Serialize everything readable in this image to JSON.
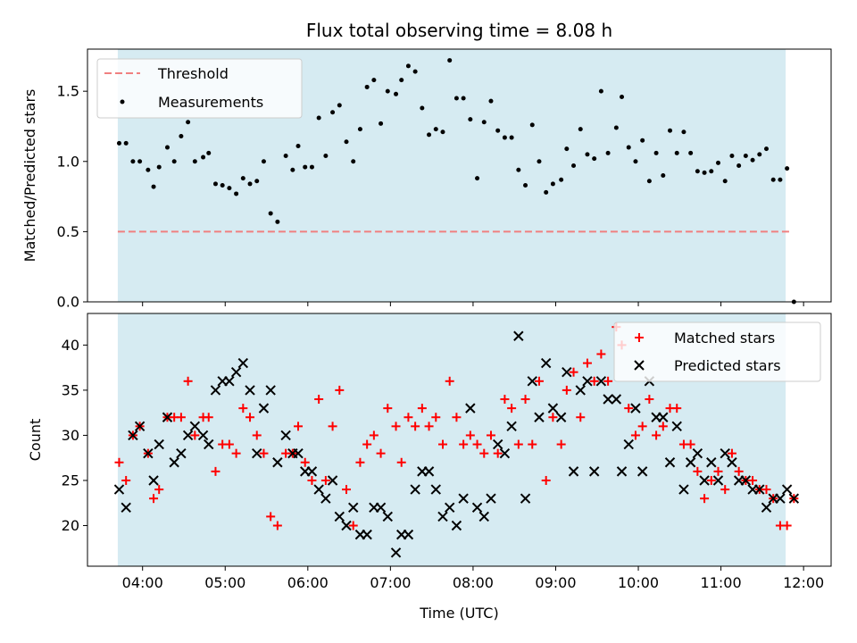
{
  "chart_data": [
    {
      "type": "scatter",
      "title": "Flux total observing time = 8.08 h",
      "xlabel": "",
      "ylabel": "Matched/Predicted stars",
      "xlim": [
        "03:20",
        "12:20"
      ],
      "ylim": [
        0,
        1.8
      ],
      "yticks": [
        "0.0",
        "0.5",
        "1.0",
        "1.5"
      ],
      "shaded_span": [
        "03:42",
        "11:47"
      ],
      "threshold": {
        "name": "Threshold",
        "value": 0.5,
        "x_range": [
          "03:42",
          "11:52"
        ],
        "style": "dashed",
        "color": "#f08080"
      },
      "legend": {
        "placement": "upper-left",
        "entries": [
          "Threshold",
          "Measurements"
        ]
      },
      "series": [
        {
          "name": "Measurements",
          "marker": "dot",
          "color": "#000000",
          "x": [
            "03:43",
            "03:48",
            "03:53",
            "03:58",
            "04:04",
            "04:08",
            "04:12",
            "04:18",
            "04:23",
            "04:28",
            "04:33",
            "04:38",
            "04:44",
            "04:48",
            "04:53",
            "04:58",
            "05:03",
            "05:08",
            "05:13",
            "05:18",
            "05:23",
            "05:28",
            "05:33",
            "05:38",
            "05:44",
            "05:49",
            "05:53",
            "05:58",
            "06:03",
            "06:08",
            "06:13",
            "06:18",
            "06:23",
            "06:28",
            "06:33",
            "06:38",
            "06:43",
            "06:48",
            "06:53",
            "06:58",
            "07:04",
            "07:08",
            "07:13",
            "07:18",
            "07:23",
            "07:28",
            "07:33",
            "07:38",
            "07:43",
            "07:48",
            "07:53",
            "07:58",
            "08:03",
            "08:08",
            "08:13",
            "08:18",
            "08:23",
            "08:28",
            "08:33",
            "08:38",
            "08:43",
            "08:48",
            "08:53",
            "08:58",
            "09:04",
            "09:08",
            "09:13",
            "09:18",
            "09:23",
            "09:28",
            "09:33",
            "09:38",
            "09:44",
            "09:48",
            "09:53",
            "09:58",
            "10:03",
            "10:08",
            "10:13",
            "10:18",
            "10:23",
            "10:28",
            "10:33",
            "10:38",
            "10:43",
            "10:48",
            "10:53",
            "10:58",
            "11:03",
            "11:08",
            "11:13",
            "11:18",
            "11:23",
            "11:28",
            "11:33",
            "11:38",
            "11:43",
            "11:48",
            "11:53"
          ],
          "values": [
            1.13,
            1.13,
            1.0,
            1.0,
            0.94,
            0.82,
            0.96,
            1.1,
            1.0,
            1.18,
            1.28,
            1.0,
            1.03,
            1.06,
            0.84,
            0.83,
            0.81,
            0.77,
            0.88,
            0.84,
            0.86,
            1.0,
            0.63,
            0.57,
            1.04,
            0.94,
            1.11,
            0.96,
            0.96,
            1.31,
            1.04,
            1.35,
            1.4,
            1.14,
            1.0,
            1.23,
            1.53,
            1.58,
            1.27,
            1.5,
            1.48,
            1.58,
            1.68,
            1.64,
            1.38,
            1.19,
            1.23,
            1.21,
            1.72,
            1.45,
            1.45,
            1.3,
            0.88,
            1.28,
            1.43,
            1.22,
            1.17,
            1.17,
            0.94,
            0.83,
            1.26,
            1.0,
            0.78,
            0.84,
            0.87,
            1.09,
            0.97,
            1.23,
            1.05,
            1.02,
            1.5,
            1.06,
            1.24,
            1.46,
            1.1,
            1.0,
            1.15,
            0.86,
            1.06,
            0.9,
            1.22,
            1.06,
            1.21,
            1.06,
            0.93,
            0.92,
            0.93,
            0.99,
            0.86,
            1.04,
            0.97,
            1.04,
            1.01,
            1.05,
            1.09,
            0.87,
            0.87,
            0.95,
            0.0
          ]
        }
      ]
    },
    {
      "type": "scatter",
      "title": "",
      "xlabel": "Time (UTC)",
      "ylabel": "Count",
      "xlim": [
        "03:20",
        "12:20"
      ],
      "ylim": [
        15.5,
        43.5
      ],
      "yticks": [
        "20",
        "25",
        "30",
        "35",
        "40"
      ],
      "xticks": [
        "04:00",
        "05:00",
        "06:00",
        "07:00",
        "08:00",
        "09:00",
        "10:00",
        "11:00",
        "12:00"
      ],
      "shaded_span": [
        "03:42",
        "11:47"
      ],
      "legend": {
        "placement": "upper-right",
        "entries": [
          "Matched stars",
          "Predicted stars"
        ]
      },
      "series": [
        {
          "name": "Matched stars",
          "marker": "plus",
          "color": "#ff0000",
          "x": [
            "03:43",
            "03:48",
            "03:53",
            "03:58",
            "04:04",
            "04:08",
            "04:12",
            "04:18",
            "04:23",
            "04:28",
            "04:33",
            "04:38",
            "04:44",
            "04:48",
            "04:53",
            "04:58",
            "05:03",
            "05:08",
            "05:13",
            "05:18",
            "05:23",
            "05:28",
            "05:33",
            "05:38",
            "05:44",
            "05:49",
            "05:53",
            "05:58",
            "06:03",
            "06:08",
            "06:13",
            "06:18",
            "06:23",
            "06:28",
            "06:33",
            "06:38",
            "06:43",
            "06:48",
            "06:53",
            "06:58",
            "07:04",
            "07:08",
            "07:13",
            "07:18",
            "07:23",
            "07:28",
            "07:33",
            "07:38",
            "07:43",
            "07:48",
            "07:53",
            "07:58",
            "08:03",
            "08:08",
            "08:13",
            "08:18",
            "08:23",
            "08:28",
            "08:33",
            "08:38",
            "08:43",
            "08:48",
            "08:53",
            "08:58",
            "09:04",
            "09:08",
            "09:13",
            "09:18",
            "09:23",
            "09:28",
            "09:33",
            "09:38",
            "09:44",
            "09:48",
            "09:53",
            "09:58",
            "10:03",
            "10:08",
            "10:13",
            "10:18",
            "10:23",
            "10:28",
            "10:33",
            "10:38",
            "10:43",
            "10:48",
            "10:53",
            "10:58",
            "11:03",
            "11:08",
            "11:13",
            "11:18",
            "11:23",
            "11:28",
            "11:33",
            "11:38",
            "11:43",
            "11:48",
            "11:53"
          ],
          "values": [
            27,
            25,
            30,
            31,
            28,
            23,
            24,
            32,
            32,
            32,
            36,
            30,
            32,
            32,
            26,
            29,
            29,
            28,
            33,
            32,
            30,
            28,
            21,
            20,
            28,
            28,
            31,
            27,
            25,
            34,
            25,
            31,
            35,
            24,
            20,
            27,
            29,
            30,
            28,
            33,
            31,
            27,
            32,
            31,
            33,
            31,
            32,
            29,
            36,
            32,
            29,
            30,
            29,
            28,
            30,
            28,
            34,
            33,
            29,
            34,
            29,
            36,
            25,
            32,
            29,
            35,
            37,
            32,
            38,
            36,
            39,
            36,
            42,
            40,
            33,
            30,
            31,
            34,
            30,
            31,
            33,
            33,
            29,
            29,
            26,
            23,
            25,
            26,
            24,
            28,
            26,
            25,
            25,
            24,
            24,
            23,
            20,
            20,
            23
          ]
        },
        {
          "name": "Predicted stars",
          "marker": "x",
          "color": "#000000",
          "x": [
            "03:43",
            "03:48",
            "03:53",
            "03:58",
            "04:04",
            "04:08",
            "04:12",
            "04:18",
            "04:23",
            "04:28",
            "04:33",
            "04:38",
            "04:44",
            "04:48",
            "04:53",
            "04:58",
            "05:03",
            "05:08",
            "05:13",
            "05:18",
            "05:23",
            "05:28",
            "05:33",
            "05:38",
            "05:44",
            "05:49",
            "05:53",
            "05:58",
            "06:03",
            "06:08",
            "06:13",
            "06:18",
            "06:23",
            "06:28",
            "06:33",
            "06:38",
            "06:43",
            "06:48",
            "06:53",
            "06:58",
            "07:04",
            "07:08",
            "07:13",
            "07:18",
            "07:23",
            "07:28",
            "07:33",
            "07:38",
            "07:43",
            "07:48",
            "07:53",
            "07:58",
            "08:03",
            "08:08",
            "08:13",
            "08:18",
            "08:23",
            "08:28",
            "08:33",
            "08:38",
            "08:43",
            "08:48",
            "08:53",
            "08:58",
            "09:04",
            "09:08",
            "09:13",
            "09:18",
            "09:23",
            "09:28",
            "09:33",
            "09:38",
            "09:44",
            "09:48",
            "09:53",
            "09:58",
            "10:03",
            "10:08",
            "10:13",
            "10:18",
            "10:23",
            "10:28",
            "10:33",
            "10:38",
            "10:43",
            "10:48",
            "10:53",
            "10:58",
            "11:03",
            "11:08",
            "11:13",
            "11:18",
            "11:23",
            "11:28",
            "11:33",
            "11:38",
            "11:43",
            "11:48",
            "11:53"
          ],
          "values": [
            24,
            22,
            30,
            31,
            28,
            25,
            29,
            32,
            27,
            28,
            30,
            31,
            30,
            29,
            35,
            36,
            36,
            37,
            38,
            35,
            28,
            33,
            35,
            27,
            30,
            28,
            28,
            26,
            26,
            24,
            23,
            25,
            21,
            20,
            22,
            19,
            19,
            22,
            22,
            21,
            17,
            19,
            19,
            24,
            26,
            26,
            24,
            21,
            22,
            20,
            23,
            33,
            22,
            21,
            23,
            29,
            28,
            31,
            41,
            23,
            36,
            32,
            38,
            33,
            32,
            37,
            26,
            35,
            36,
            26,
            36,
            34,
            34,
            26,
            29,
            33,
            26,
            36,
            32,
            32,
            27,
            31,
            24,
            27,
            28,
            25,
            27,
            25,
            28,
            27,
            25,
            25,
            24,
            24,
            22,
            23,
            23,
            24,
            23
          ]
        }
      ]
    }
  ]
}
